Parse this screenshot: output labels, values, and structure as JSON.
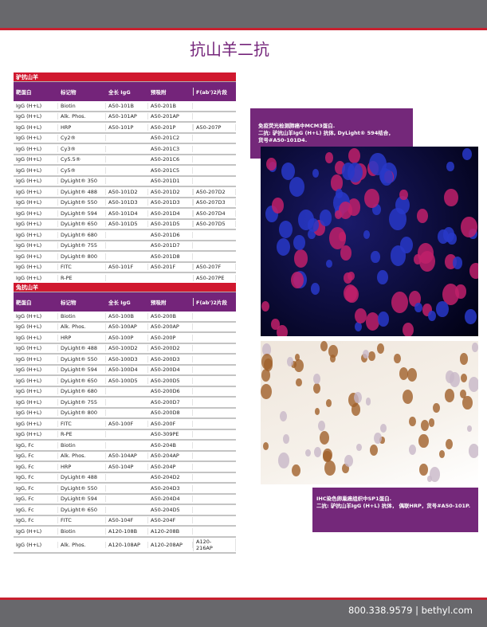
{
  "page": {
    "title": "抗山羊二抗",
    "footer": "800.338.9579 | bethyl.com"
  },
  "columns": [
    "靶蛋白",
    "标记物",
    "全长 IgG",
    "预吸附",
    "F(ab')2片段"
  ],
  "sections": [
    {
      "name": "驴抗山羊",
      "rows": [
        [
          "IgG (H+L)",
          "Biotin",
          "A50-101B",
          "A50-201B",
          ""
        ],
        [
          "IgG (H+L)",
          "Alk. Phos.",
          "A50-101AP",
          "A50-201AP",
          ""
        ],
        [
          "IgG (H+L)",
          "HRP",
          "A50-101P",
          "A50-201P",
          "A50-207P"
        ],
        [
          "IgG (H+L)",
          "Cy2®",
          "",
          "A50-201C2",
          ""
        ],
        [
          "IgG (H+L)",
          "Cy3®",
          "",
          "A50-201C3",
          ""
        ],
        [
          "IgG (H+L)",
          "Cy5.5®",
          "",
          "A50-201C6",
          ""
        ],
        [
          "IgG (H+L)",
          "Cy5®",
          "",
          "A50-201C5",
          ""
        ],
        [
          "IgG (H+L)",
          "DyLight® 350",
          "",
          "A50-201D1",
          ""
        ],
        [
          "IgG (H+L)",
          "DyLight® 488",
          "A50-101D2",
          "A50-201D2",
          "A50-207D2"
        ],
        [
          "IgG (H+L)",
          "DyLight® 550",
          "A50-101D3",
          "A50-201D3",
          "A50-207D3"
        ],
        [
          "IgG (H+L)",
          "DyLight® 594",
          "A50-101D4",
          "A50-201D4",
          "A50-207D4"
        ],
        [
          "IgG (H+L)",
          "DyLight® 650",
          "A50-101D5",
          "A50-201D5",
          "A50-207D5"
        ],
        [
          "IgG (H+L)",
          "DyLight® 680",
          "",
          "A50-201D6",
          ""
        ],
        [
          "IgG (H+L)",
          "DyLight® 755",
          "",
          "A50-201D7",
          ""
        ],
        [
          "IgG (H+L)",
          "DyLight® 800",
          "",
          "A50-201D8",
          ""
        ],
        [
          "IgG (H+L)",
          "FITC",
          "A50-101F",
          "A50-201F",
          "A50-207F"
        ],
        [
          "IgG (H+L)",
          "R-PE",
          "",
          "",
          "A50-207PE"
        ]
      ]
    },
    {
      "name": "兔抗山羊",
      "rows": [
        [
          "IgG (H+L)",
          "Biotin",
          "A50-100B",
          "A50-200B",
          ""
        ],
        [
          "IgG (H+L)",
          "Alk. Phos.",
          "A50-100AP",
          "A50-200AP",
          ""
        ],
        [
          "IgG (H+L)",
          "HRP",
          "A50-100P",
          "A50-200P",
          ""
        ],
        [
          "IgG (H+L)",
          "DyLight® 488",
          "A50-100D2",
          "A50-200D2",
          ""
        ],
        [
          "IgG (H+L)",
          "DyLight® 550",
          "A50-100D3",
          "A50-200D3",
          ""
        ],
        [
          "IgG (H+L)",
          "DyLight® 594",
          "A50-100D4",
          "A50-200D4",
          ""
        ],
        [
          "IgG (H+L)",
          "DyLight® 650",
          "A50-100D5",
          "A50-200D5",
          ""
        ],
        [
          "IgG (H+L)",
          "DyLight® 680",
          "",
          "A50-200D6",
          ""
        ],
        [
          "IgG (H+L)",
          "DyLight® 755",
          "",
          "A50-200D7",
          ""
        ],
        [
          "IgG (H+L)",
          "DyLight® 800",
          "",
          "A50-200D8",
          ""
        ],
        [
          "IgG (H+L)",
          "FITC",
          "A50-100F",
          "A50-200F",
          ""
        ],
        [
          "IgG (H+L)",
          "R-PE",
          "",
          "A50-309PE",
          ""
        ],
        [
          "IgG, Fc",
          "Biotin",
          "",
          "A50-204B",
          ""
        ],
        [
          "IgG, Fc",
          "Alk. Phos.",
          "A50-104AP",
          "A50-204AP",
          ""
        ],
        [
          "IgG, Fc",
          "HRP",
          "A50-104P",
          "A50-204P",
          ""
        ],
        [
          "IgG, Fc",
          "DyLight® 488",
          "",
          "A50-204D2",
          ""
        ],
        [
          "IgG, Fc",
          "DyLight® 550",
          "",
          "A50-204D3",
          ""
        ],
        [
          "IgG, Fc",
          "DyLight® 594",
          "",
          "A50-204D4",
          ""
        ],
        [
          "IgG, Fc",
          "DyLight® 650",
          "",
          "A50-204D5",
          ""
        ],
        [
          "IgG, Fc",
          "FITC",
          "A50-104F",
          "A50-204F",
          ""
        ],
        [
          "IgG (H+L)",
          "Biotin",
          "A120-108B",
          "A120-208B",
          ""
        ],
        [
          "IgG (H+L)",
          "Alk. Phos.",
          "A120-108AP",
          "A120-208AP",
          "A120-216AP"
        ]
      ]
    }
  ],
  "figures": [
    {
      "caption_lines": [
        "免疫荧光检测肺癌中MCM3蛋白.",
        "二抗: 驴抗山羊IgG (H+L) 抗体, DyLight® 594结合，",
        "货号#A50-101D4."
      ]
    },
    {
      "caption_lines": [
        "IHC染色卵巢癌组织中SP1蛋白.",
        "二抗: 驴抗山羊IgG (H+L) 抗体， 偶联HRP，货号#A50-101P."
      ]
    }
  ],
  "colors": {
    "header_gray": "#68686c",
    "accent_red": "#d0182f",
    "purple": "#74247a"
  }
}
